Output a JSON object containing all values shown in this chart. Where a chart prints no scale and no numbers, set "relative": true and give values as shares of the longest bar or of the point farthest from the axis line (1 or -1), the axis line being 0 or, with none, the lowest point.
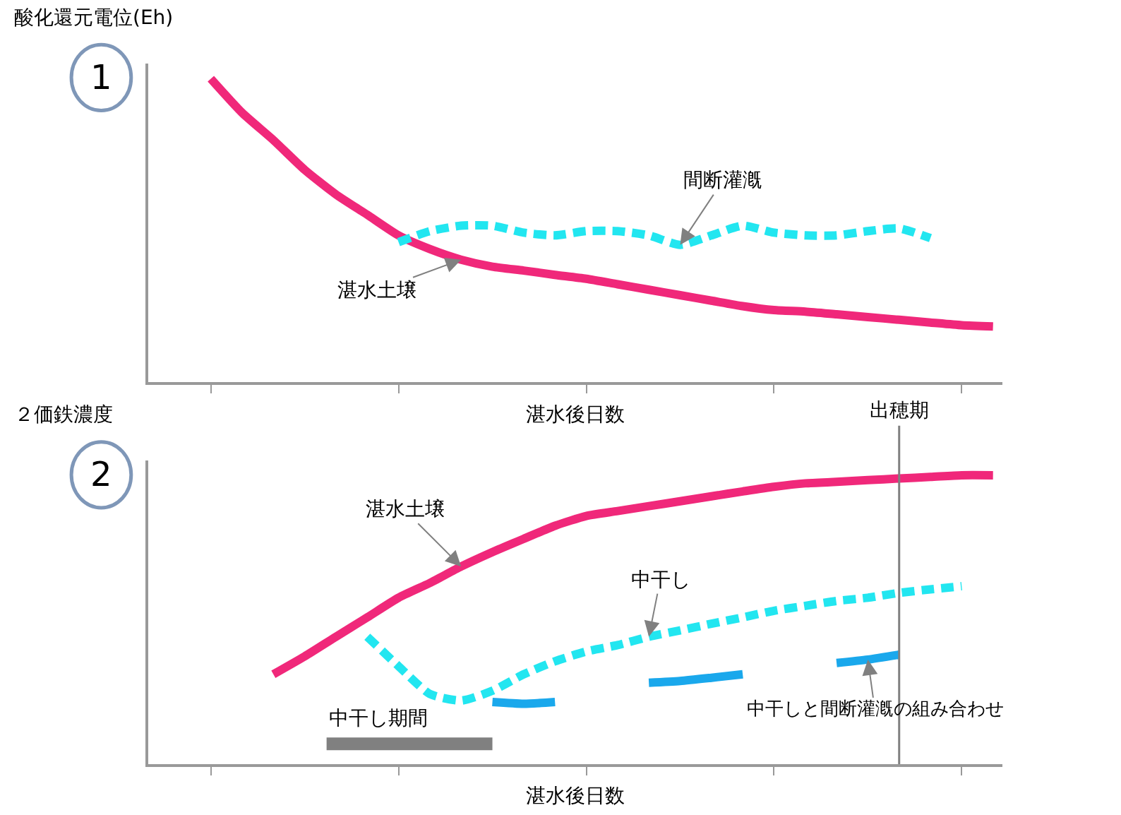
{
  "chart_data": [
    {
      "type": "line",
      "relative": true,
      "ylabel": "酸化還元電位(Eh)",
      "xlabel": "湛水後日数",
      "annotations": [
        "1"
      ],
      "marker": "none",
      "categories": [
        null,
        null,
        null,
        null,
        null,
        null,
        null,
        null,
        null,
        null,
        null,
        null,
        null,
        null,
        null,
        null,
        null,
        null,
        null,
        null,
        null,
        null,
        null,
        null,
        null,
        null
      ],
      "series": [
        {
          "name": "湛水土壌",
          "color": "#f0287a",
          "line_style": "solid",
          "values": [
            1.0,
            0.888,
            0.798,
            0.7,
            0.619,
            0.552,
            0.484,
            0.439,
            0.404,
            0.381,
            0.368,
            0.354,
            0.341,
            0.323,
            0.305,
            0.287,
            0.269,
            0.251,
            0.238,
            0.233,
            0.224,
            0.215,
            0.206,
            0.197,
            0.188,
            0.184
          ]
        },
        {
          "name": "間断灌漑",
          "color": "#22e6f0",
          "line_style": "dashed",
          "values": [
            null,
            null,
            null,
            null,
            null,
            null,
            0.462,
            0.498,
            0.516,
            0.516,
            0.493,
            0.484,
            0.498,
            0.498,
            0.484,
            0.453,
            0.484,
            0.516,
            0.493,
            0.484,
            0.484,
            0.498,
            0.507,
            0.475,
            null,
            null
          ]
        }
      ]
    },
    {
      "type": "line",
      "relative": true,
      "ylabel": "２価鉄濃度",
      "xlabel": "湛水後日数",
      "annotations": [
        "2",
        "出穂期",
        "中干し期間"
      ],
      "marker": "none",
      "categories": [
        null,
        null,
        null,
        null,
        null,
        null,
        null,
        null,
        null,
        null,
        null,
        null,
        null,
        null,
        null,
        null,
        null,
        null,
        null,
        null,
        null,
        null,
        null,
        null,
        null,
        null
      ],
      "series": [
        {
          "name": "湛水土壌",
          "color": "#f0287a",
          "line_style": "solid",
          "values": [
            null,
            null,
            0.311,
            0.373,
            0.441,
            0.508,
            0.576,
            0.627,
            0.684,
            0.734,
            0.78,
            0.825,
            0.859,
            0.876,
            0.893,
            0.91,
            0.927,
            0.944,
            0.96,
            0.972,
            0.977,
            0.983,
            0.989,
            0.994,
            1.0,
            1.0
          ]
        },
        {
          "name": "中干し",
          "color": "#22e6f0",
          "line_style": "dashed",
          "values": [
            null,
            null,
            null,
            null,
            null,
            0.441,
            0.339,
            0.243,
            0.22,
            0.254,
            0.311,
            0.356,
            0.39,
            0.412,
            0.441,
            0.463,
            0.486,
            0.508,
            0.531,
            0.548,
            0.565,
            0.576,
            0.593,
            0.605,
            0.616,
            null
          ]
        },
        {
          "name": "中干しと間断灌漑の組み合わせ",
          "color": "#1aa8ec",
          "line_style": "solid",
          "values": [
            null,
            null,
            null,
            null,
            null,
            null,
            null,
            null,
            null,
            0.215,
            0.209,
            0.215,
            null,
            null,
            0.282,
            0.288,
            0.299,
            0.311,
            null,
            null,
            0.35,
            0.362,
            0.379,
            null,
            null,
            null
          ]
        }
      ]
    }
  ]
}
